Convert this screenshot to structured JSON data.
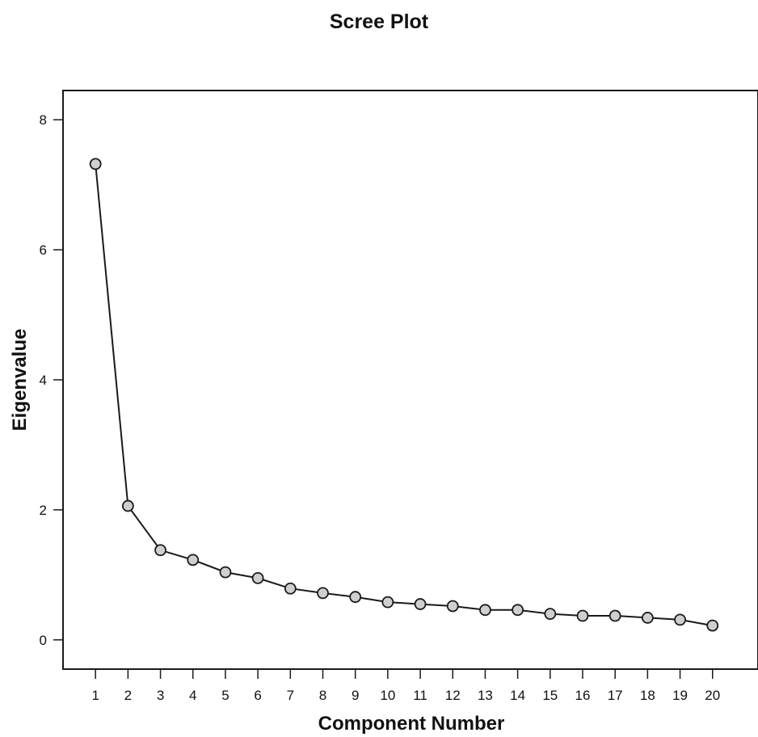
{
  "chart_data": {
    "type": "line",
    "title": "Scree Plot",
    "xlabel": "Component Number",
    "ylabel": "Eigenvalue",
    "x": [
      1,
      2,
      3,
      4,
      5,
      6,
      7,
      8,
      9,
      10,
      11,
      12,
      13,
      14,
      15,
      16,
      17,
      18,
      19,
      20
    ],
    "x_tick_labels": [
      "1",
      "2",
      "3",
      "4",
      "5",
      "6",
      "7",
      "8",
      "9",
      "10",
      "11",
      "12",
      "13",
      "14",
      "15",
      "16",
      "17",
      "18",
      "19",
      "20"
    ],
    "y": [
      7.32,
      2.06,
      1.38,
      1.23,
      1.04,
      0.95,
      0.79,
      0.72,
      0.66,
      0.58,
      0.55,
      0.52,
      0.46,
      0.46,
      0.4,
      0.37,
      0.37,
      0.34,
      0.31,
      0.22
    ],
    "y_ticks": [
      0,
      2,
      4,
      6,
      8
    ],
    "y_tick_labels": [
      "0",
      "2",
      "4",
      "6",
      "8"
    ],
    "xlim": [
      0,
      21.4
    ],
    "ylim": [
      -0.45,
      8.45
    ],
    "grid": false,
    "legend": "none",
    "colors": {
      "line": "#1a1a1a",
      "marker_fill": "#cfcfcf",
      "marker_stroke": "#1a1a1a",
      "frame": "#1a1a1a"
    }
  }
}
